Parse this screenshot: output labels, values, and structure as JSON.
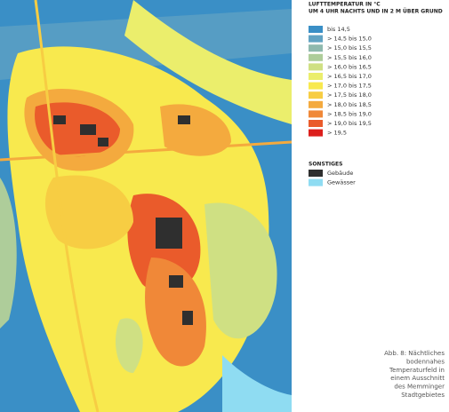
{
  "legend": {
    "title": [
      "LUFTTEMPERATUR IN °C",
      "UM 4 UHR NACHTS UND IN 2 M ÜBER GRUND"
    ],
    "entries": [
      {
        "label": "bis 14,5",
        "color": "#3a8fc6"
      },
      {
        "label": "> 14,5 bis 15,0",
        "color": "#62a3c3"
      },
      {
        "label": "> 15,0 bis 15,5",
        "color": "#8fb9ae"
      },
      {
        "label": "> 15,5 bis 16,0",
        "color": "#aecd9a"
      },
      {
        "label": "> 16,0 bis 16,5",
        "color": "#cfe083"
      },
      {
        "label": "> 16,5 bis 17,0",
        "color": "#ebee6c"
      },
      {
        "label": "> 17,0 bis 17,5",
        "color": "#f8e94e"
      },
      {
        "label": "> 17,5 bis 18,0",
        "color": "#f7cd43"
      },
      {
        "label": "> 18,0 bis 18,5",
        "color": "#f4aa3e"
      },
      {
        "label": "> 18,5 bis 19,0",
        "color": "#f08838"
      },
      {
        "label": "> 19,0 bis 19,5",
        "color": "#ea5b2b"
      },
      {
        "label": "> 19,5",
        "color": "#dc1f1c"
      }
    ],
    "other_title": "SONSTIGES",
    "other_entries": [
      {
        "label": "Gebäude",
        "color": "#2f2f2f"
      },
      {
        "label": "Gewässer",
        "color": "#8fdcf2"
      }
    ]
  },
  "caption": [
    "Abb. 8: Nächtliches",
    "bodennahes",
    "Temperaturfeld in",
    "einem Ausschnitt",
    "des Memminger",
    "Stadtgebietes"
  ]
}
